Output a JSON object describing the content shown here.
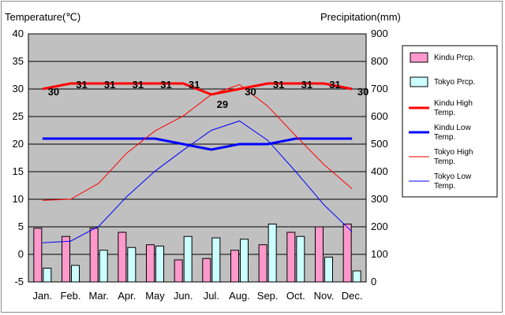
{
  "colors": {
    "plot_bg": "#c0c0c0",
    "kindu_prcp": "#ff99cc",
    "tokyo_prcp": "#ccffff",
    "kindu_high": "#ff0000",
    "kindu_low": "#0000ff",
    "tokyo_high": "#ff0000",
    "tokyo_low": "#0000ff",
    "grid": "#000000"
  },
  "chart_data": {
    "type": "bar",
    "ylabel": "Temperature(℃)",
    "y2label": "Precipitation(mm)",
    "ylim": [
      -5,
      40
    ],
    "y2lim": [
      0,
      900
    ],
    "yticks": [
      "40",
      "35",
      "30",
      "25",
      "20",
      "15",
      "10",
      "5",
      "0",
      "-5"
    ],
    "y2ticks": [
      "900",
      "800",
      "700",
      "600",
      "500",
      "400",
      "300",
      "200",
      "100",
      "0"
    ],
    "categories": [
      "Jan.",
      "Feb.",
      "Mar.",
      "Apr.",
      "May",
      "Jun.",
      "Jul.",
      "Aug.",
      "Sep.",
      "Oct.",
      "Nov.",
      "Dec."
    ],
    "grid": true,
    "legend_position": "right",
    "bar_series": [
      {
        "name": "Kindu Prcp.",
        "axis": "right",
        "values": [
          195,
          165,
          195,
          180,
          135,
          80,
          85,
          115,
          135,
          180,
          200,
          210
        ]
      },
      {
        "name": "Tokyo Prcp.",
        "axis": "right",
        "values": [
          50,
          60,
          115,
          125,
          130,
          165,
          160,
          155,
          210,
          165,
          90,
          40
        ]
      }
    ],
    "line_series": [
      {
        "name": "Kindu High Temp.",
        "axis": "left",
        "values": [
          30,
          31,
          31,
          31,
          31,
          31,
          29,
          30,
          31,
          31,
          31,
          30
        ],
        "labels": [
          "30",
          "31",
          "31",
          "31",
          "31",
          "31",
          "29",
          "30",
          "31",
          "31",
          "31",
          "30"
        ]
      },
      {
        "name": "Kindu Low Temp.",
        "axis": "left",
        "values": [
          21,
          21,
          21,
          21,
          21,
          20,
          19,
          20,
          20,
          21,
          21,
          21
        ]
      },
      {
        "name": "Tokyo High Temp.",
        "axis": "left",
        "values": [
          9.8,
          10,
          12.9,
          18.4,
          22.4,
          25.1,
          29,
          30.8,
          26.9,
          21.5,
          16.3,
          11.9
        ]
      },
      {
        "name": "Tokyo Low Temp.",
        "axis": "left",
        "values": [
          2.1,
          2.4,
          5.1,
          10.5,
          15.1,
          18.9,
          22.5,
          24.2,
          20.7,
          15,
          9,
          4.1
        ]
      }
    ]
  }
}
